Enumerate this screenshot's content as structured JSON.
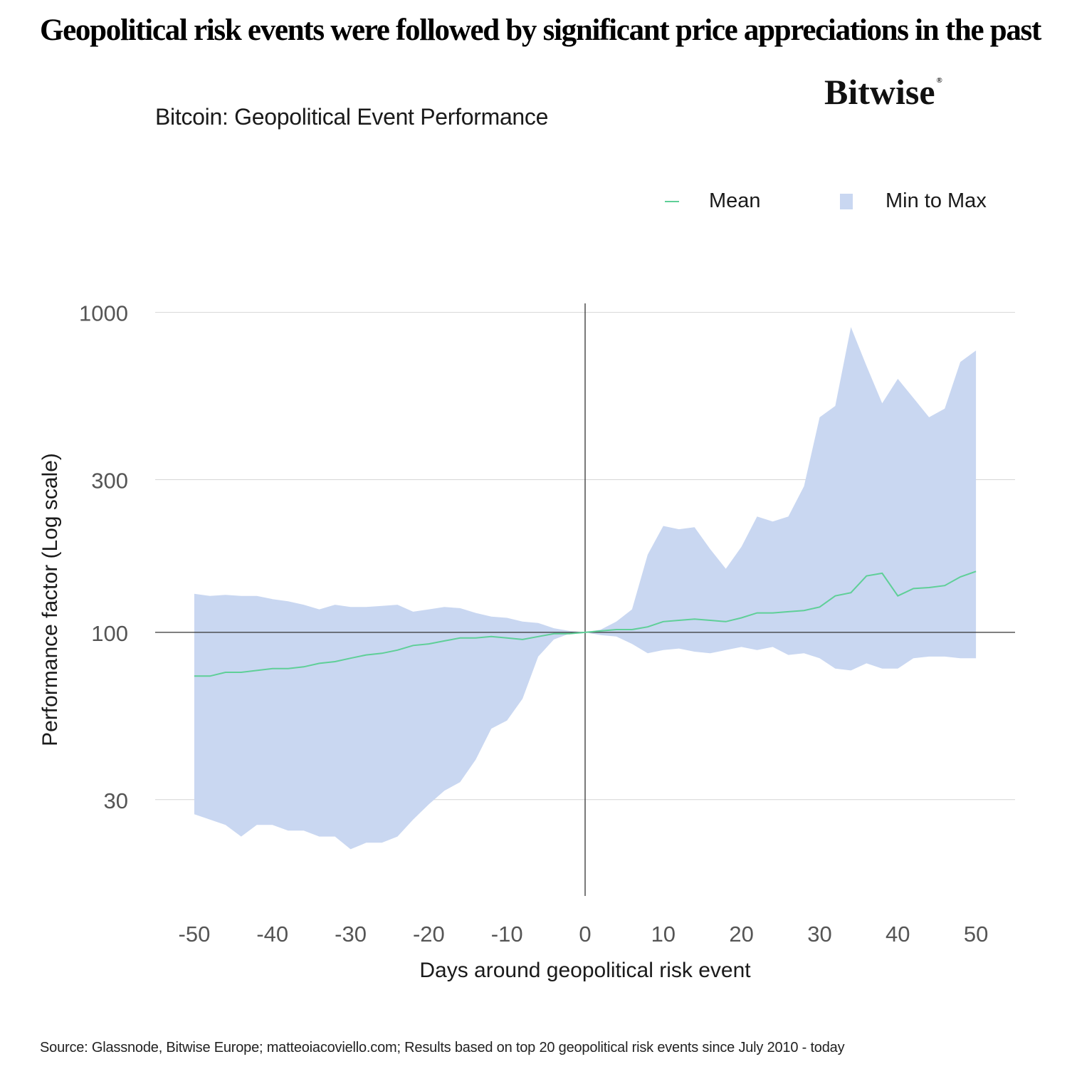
{
  "headline": "Geopolitical risk events were followed by significant price appreciations in the past",
  "brand": {
    "name": "Bitwise",
    "mark": "®"
  },
  "footer": {
    "source": "Source: Glassnode, Bitwise Europe; matteoiacoviello.com; Results based on top 20 geopolitical risk events since July 2010 - today"
  },
  "chart_data": {
    "type": "area",
    "title": "Bitcoin: Geopolitical Event Performance",
    "xlabel": "Days around geopolitical risk event",
    "ylabel": "Performance factor (Log scale)",
    "yscale": "log",
    "ylim": [
      15,
      1100
    ],
    "xlim": [
      -55,
      55
    ],
    "yticks": [
      30,
      100,
      300,
      1000
    ],
    "xticks": [
      -50,
      -40,
      -30,
      -20,
      -10,
      0,
      10,
      20,
      30,
      40,
      50
    ],
    "grid": "horizontal",
    "legend_position": "top-right",
    "colors": {
      "mean": "#5fcf98",
      "range": "#c9d7f1",
      "grid": "#d6d6d6",
      "axis": "#333333",
      "tick_text": "#555555"
    },
    "reference_lines": {
      "x": 0,
      "y": 100
    },
    "x": [
      -50,
      -48,
      -46,
      -44,
      -42,
      -40,
      -38,
      -36,
      -34,
      -32,
      -30,
      -28,
      -26,
      -24,
      -22,
      -20,
      -18,
      -16,
      -14,
      -12,
      -10,
      -8,
      -6,
      -4,
      -2,
      0,
      2,
      4,
      6,
      8,
      10,
      12,
      14,
      16,
      18,
      20,
      22,
      24,
      26,
      28,
      30,
      32,
      34,
      36,
      38,
      40,
      42,
      44,
      46,
      48,
      50
    ],
    "series": [
      {
        "name": "Mean",
        "kind": "line",
        "values": [
          73,
          73,
          75,
          75,
          76,
          77,
          77,
          78,
          80,
          81,
          83,
          85,
          86,
          88,
          91,
          92,
          94,
          96,
          96,
          97,
          96,
          95,
          97,
          99,
          99,
          100,
          101,
          102,
          102,
          104,
          108,
          109,
          110,
          109,
          108,
          111,
          115,
          115,
          116,
          117,
          120,
          130,
          133,
          150,
          153,
          130,
          137,
          138,
          140,
          149,
          155
        ]
      },
      {
        "name": "Min",
        "kind": "band-lower",
        "values": [
          27,
          26,
          25,
          23,
          25,
          25,
          24,
          24,
          23,
          23,
          21,
          22,
          22,
          23,
          26,
          29,
          32,
          34,
          40,
          50,
          53,
          62,
          84,
          95,
          99,
          100,
          98,
          97,
          92,
          86,
          88,
          89,
          87,
          86,
          88,
          90,
          88,
          90,
          85,
          86,
          83,
          77,
          76,
          80,
          77,
          77,
          83,
          84,
          84,
          83,
          83
        ]
      },
      {
        "name": "Max",
        "kind": "band-upper",
        "values": [
          132,
          130,
          131,
          130,
          130,
          127,
          125,
          122,
          118,
          122,
          120,
          120,
          121,
          122,
          116,
          118,
          120,
          119,
          115,
          112,
          111,
          108,
          107,
          103,
          101,
          100,
          102,
          108,
          118,
          175,
          215,
          210,
          213,
          182,
          158,
          185,
          230,
          222,
          230,
          286,
          470,
          510,
          900,
          680,
          520,
          620,
          540,
          470,
          500,
          700,
          760
        ]
      }
    ],
    "legend": [
      {
        "label": "Mean",
        "symbol": "line"
      },
      {
        "label": "Min to Max",
        "symbol": "square"
      }
    ]
  }
}
